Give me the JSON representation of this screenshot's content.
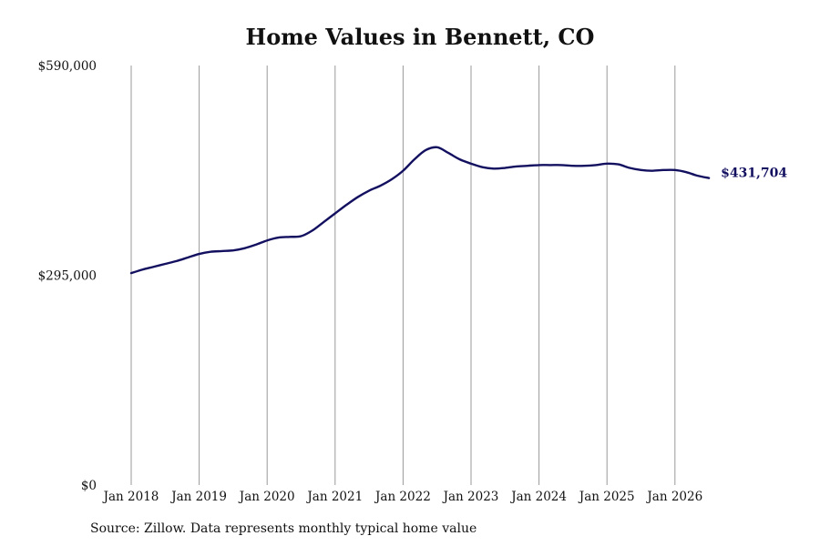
{
  "chart_data": {
    "type": "line",
    "title": "Home Values in Bennett, CO",
    "xlabel": "",
    "ylabel": "",
    "x_tick_labels": [
      "Jan 2018",
      "Jan 2019",
      "Jan 2020",
      "Jan 2021",
      "Jan 2022",
      "Jan 2023",
      "Jan 2024",
      "Jan 2025",
      "Jan 2026"
    ],
    "y_tick_labels": [
      "$0",
      "$295,000",
      "$590,000"
    ],
    "ylim": [
      0,
      590000
    ],
    "x_range": [
      "2018-01",
      "2026-07"
    ],
    "grid": "vertical",
    "line_color": "#131060",
    "grid_color": "#999999",
    "end_label": "$431,704",
    "series": [
      {
        "x": [
          "2018-01",
          "2018-03",
          "2018-05",
          "2018-07",
          "2018-09",
          "2018-11",
          "2019-01",
          "2019-03",
          "2019-05",
          "2019-07",
          "2019-09",
          "2019-11",
          "2020-01",
          "2020-03",
          "2020-05",
          "2020-07",
          "2020-09",
          "2020-11",
          "2021-01",
          "2021-03",
          "2021-05",
          "2021-07",
          "2021-09",
          "2021-11",
          "2022-01",
          "2022-03",
          "2022-05",
          "2022-07",
          "2022-09",
          "2022-11",
          "2023-01",
          "2023-03",
          "2023-05",
          "2023-07",
          "2023-09",
          "2023-11",
          "2024-01",
          "2024-03",
          "2024-05",
          "2024-07",
          "2024-09",
          "2024-11",
          "2025-01",
          "2025-03",
          "2025-05",
          "2025-07",
          "2025-09",
          "2025-11",
          "2026-01",
          "2026-03",
          "2026-05",
          "2026-07"
        ],
        "values": [
          298000,
          303000,
          307000,
          311000,
          315000,
          320000,
          325000,
          328000,
          329000,
          330000,
          333000,
          338000,
          344000,
          348000,
          349000,
          350000,
          358000,
          370000,
          382000,
          394000,
          405000,
          414000,
          421000,
          430000,
          442000,
          458000,
          471000,
          475000,
          467000,
          458000,
          452000,
          447000,
          445000,
          446000,
          448000,
          449000,
          450000,
          450000,
          450000,
          449000,
          449000,
          450000,
          452000,
          451000,
          446000,
          443000,
          442000,
          443000,
          443000,
          440000,
          435000,
          431704
        ]
      }
    ]
  },
  "source_text": "Source: Zillow. Data represents monthly typical home value"
}
